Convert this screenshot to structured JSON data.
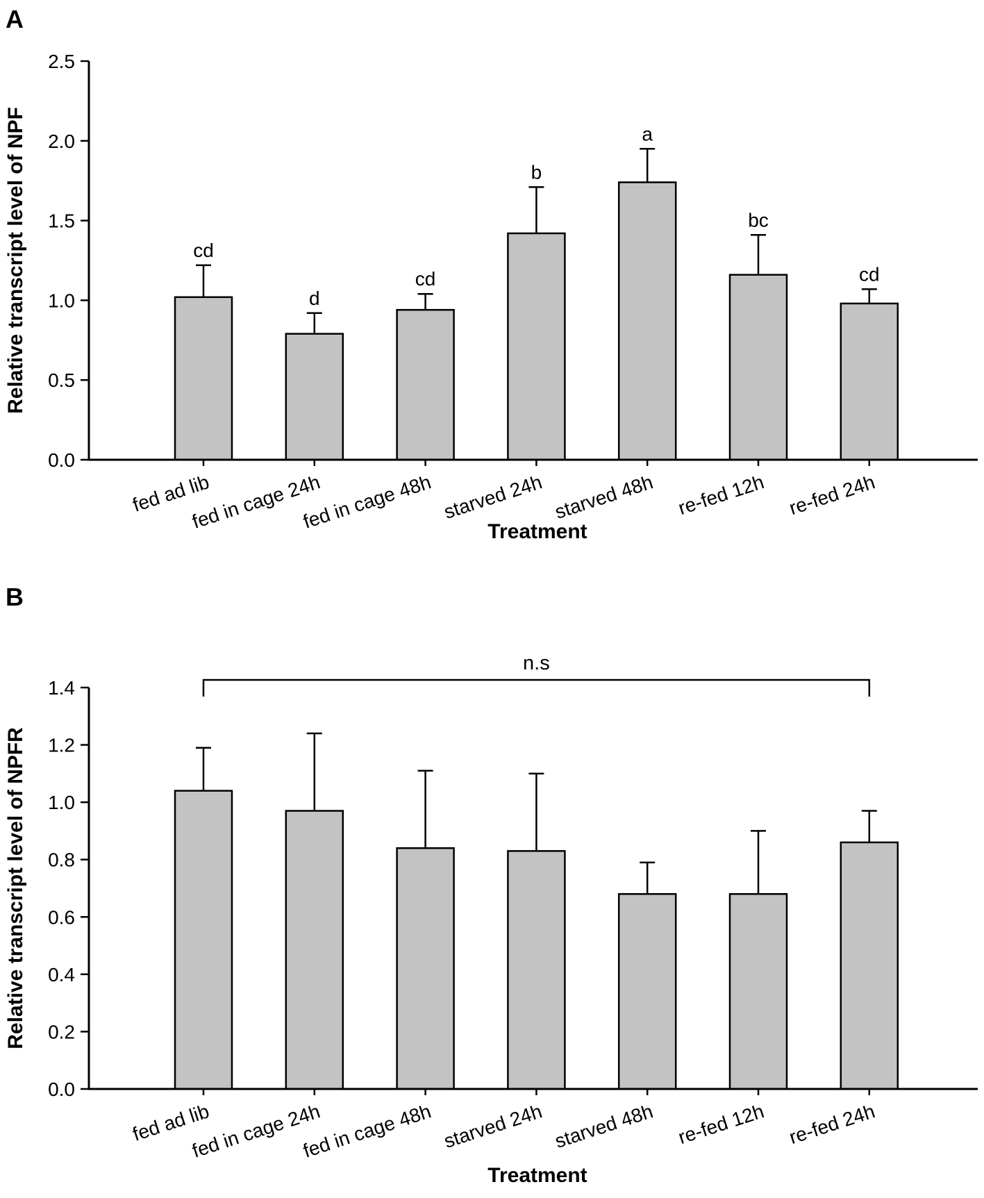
{
  "figure": {
    "colors": {
      "background": "#ffffff",
      "bar_fill": "#c3c3c3",
      "line": "#000000"
    }
  },
  "chart_data": [
    {
      "type": "bar",
      "panel_label": "A",
      "xlabel": "Treatment",
      "ylabel": "Relative transcript level of NPF",
      "categories": [
        "fed ad lib",
        "fed in cage 24h",
        "fed in cage 48h",
        "starved 24h",
        "starved 48h",
        "re-fed 12h",
        "re-fed 24h"
      ],
      "values": [
        1.02,
        0.79,
        0.94,
        1.42,
        1.74,
        1.16,
        0.98
      ],
      "error_plus": [
        0.2,
        0.13,
        0.1,
        0.29,
        0.21,
        0.25,
        0.09
      ],
      "sig_letters": [
        "cd",
        "d",
        "cd",
        "b",
        "a",
        "bc",
        "cd"
      ],
      "ylim": [
        0,
        2.5
      ],
      "ytick_step": 0.5,
      "ytick_labels": [
        "0.0",
        "0.5",
        "1.0",
        "1.5",
        "2.0",
        "2.5"
      ],
      "grid": false,
      "legend": null,
      "bar_color": "#c3c3c3"
    },
    {
      "type": "bar",
      "panel_label": "B",
      "xlabel": "Treatment",
      "ylabel": "Relative transcript level of NPFR",
      "categories": [
        "fed ad lib",
        "fed in cage 24h",
        "fed in cage 48h",
        "starved 24h",
        "starved 48h",
        "re-fed 12h",
        "re-fed 24h"
      ],
      "values": [
        1.04,
        0.97,
        0.84,
        0.83,
        0.68,
        0.68,
        0.86
      ],
      "error_plus": [
        0.15,
        0.27,
        0.27,
        0.27,
        0.11,
        0.22,
        0.11
      ],
      "sig_letters": null,
      "ns_bracket": {
        "label": "n.s",
        "from_index": 0,
        "to_index": 6
      },
      "ylim": [
        0,
        1.4
      ],
      "ytick_step": 0.2,
      "ytick_labels": [
        "0.0",
        "0.2",
        "0.4",
        "0.6",
        "0.8",
        "1.0",
        "1.2",
        "1.4"
      ],
      "grid": false,
      "legend": null,
      "bar_color": "#c3c3c3"
    }
  ]
}
